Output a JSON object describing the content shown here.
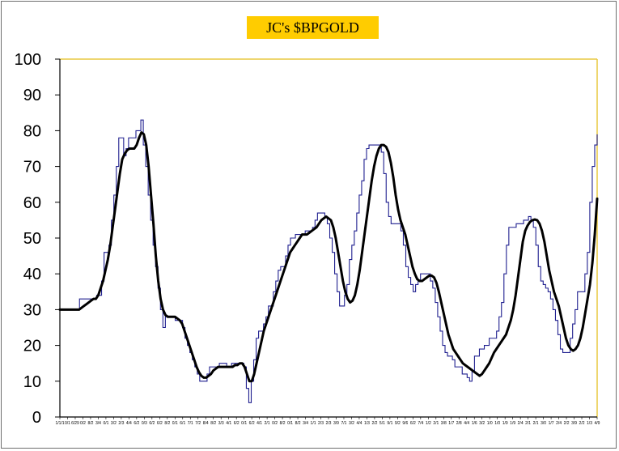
{
  "chart_data": {
    "type": "line",
    "title": "JC's $BPGOLD",
    "xlabel": "",
    "ylabel": "",
    "ylim": [
      0,
      100
    ],
    "yticks": [
      0,
      10,
      20,
      30,
      40,
      50,
      60,
      70,
      80,
      90,
      100
    ],
    "grid": false,
    "legend": "none",
    "colors": {
      "raw": "#1f1f8f",
      "smooth": "#000000",
      "plot_border": "#e8c840",
      "title_bg": "#ffcc00"
    },
    "series": [
      {
        "values": [
          30,
          30,
          30,
          30,
          30,
          30,
          30,
          30,
          33,
          33,
          33,
          33,
          33,
          33,
          33,
          34,
          34,
          38,
          46,
          46,
          48,
          55,
          62,
          70,
          78,
          78,
          73,
          75,
          78,
          78,
          78,
          80,
          80,
          83,
          76,
          70,
          62,
          55,
          48,
          42,
          36,
          30,
          25,
          28,
          28,
          28,
          28,
          27,
          27,
          27,
          25,
          22,
          20,
          18,
          16,
          14,
          12,
          10,
          10,
          10,
          12,
          14,
          14,
          14,
          14,
          15,
          15,
          15,
          14,
          14,
          15,
          15,
          15,
          15,
          15,
          14,
          8,
          4,
          10,
          16,
          22,
          24,
          24,
          26,
          28,
          31,
          31,
          35,
          38,
          41,
          42,
          42,
          45,
          48,
          50,
          50,
          51,
          51,
          51,
          51,
          52,
          52,
          52,
          53,
          55,
          57,
          57,
          57,
          56,
          54,
          50,
          46,
          40,
          35,
          31,
          31,
          34,
          37,
          44,
          48,
          52,
          57,
          62,
          66,
          72,
          75,
          76,
          76,
          76,
          76,
          76,
          74,
          68,
          60,
          56,
          54,
          54,
          54,
          54,
          52,
          48,
          42,
          39,
          37,
          35,
          37,
          38,
          40,
          40,
          40,
          40,
          38,
          36,
          32,
          28,
          24,
          20,
          18,
          17,
          17,
          16,
          14,
          14,
          14,
          12,
          12,
          11,
          10,
          13,
          17,
          17,
          19,
          19,
          20,
          20,
          22,
          22,
          22,
          24,
          28,
          32,
          40,
          48,
          53,
          53,
          53,
          54,
          54,
          54,
          55,
          55,
          56,
          55,
          53,
          48,
          42,
          38,
          37,
          36,
          35,
          33,
          30,
          27,
          23,
          19,
          18,
          18,
          18,
          22,
          26,
          30,
          35,
          35,
          35,
          40,
          46,
          60,
          70,
          76,
          79
        ]
      },
      {
        "values": [
          30,
          30,
          30,
          30,
          30,
          30,
          30,
          30,
          30,
          30.5,
          31,
          31.5,
          32,
          32.5,
          33,
          33,
          34,
          36,
          38,
          41,
          44,
          48,
          53,
          58,
          63,
          68,
          72,
          73.5,
          74.5,
          75,
          75,
          75,
          76,
          78,
          79.5,
          79,
          76,
          70,
          62,
          54,
          45,
          38,
          33,
          30,
          28.5,
          28,
          28,
          28,
          28,
          27.5,
          27,
          26,
          24,
          22,
          20,
          18,
          16,
          14,
          12.5,
          11.5,
          11,
          11,
          11.5,
          12,
          13,
          13.5,
          14,
          14,
          14,
          14,
          14,
          14,
          14,
          14.5,
          14.5,
          15,
          15,
          14,
          12,
          10,
          10,
          12,
          15,
          18,
          21,
          24,
          26,
          28,
          30,
          32,
          34,
          36,
          38,
          40,
          42,
          44,
          46,
          47,
          48,
          49,
          50,
          51,
          51,
          51,
          51.5,
          52,
          52.5,
          53,
          54,
          55,
          55.5,
          56,
          55.5,
          55,
          53,
          50,
          46,
          42,
          38,
          35,
          33,
          32,
          32.5,
          34,
          37,
          41,
          46,
          51,
          56,
          61,
          66,
          70,
          73,
          75,
          76,
          76,
          75.5,
          74,
          71,
          67,
          62,
          58,
          55,
          53,
          51,
          48,
          45,
          42,
          40,
          38.5,
          38,
          38,
          38.5,
          39,
          39.5,
          39.5,
          39,
          37.5,
          35,
          32,
          29,
          26,
          23,
          21,
          19,
          18,
          17,
          16,
          15,
          14.5,
          14,
          13.5,
          13,
          12.5,
          12,
          11.5,
          12,
          13,
          14,
          15,
          16.5,
          18,
          19,
          20,
          21,
          22,
          23,
          25,
          27,
          30,
          34,
          39,
          44,
          49,
          52,
          53.5,
          54.5,
          55,
          55.2,
          55,
          54,
          52,
          49,
          45,
          41,
          38,
          35,
          33,
          31,
          28,
          25,
          22,
          20,
          19,
          18.5,
          19,
          20,
          22,
          25,
          29,
          33,
          37,
          43,
          51,
          61
        ]
      }
    ],
    "x_tick_labels": [
      "1/1/1",
      "0/1",
      "6/29",
      "0/2",
      "8/2",
      "3/4",
      "0/1",
      "3/2",
      "2/3",
      "4/4",
      "6/2",
      "0/3",
      "6/2",
      "6/2",
      "8/2",
      "0/1",
      "6/1",
      "7/1",
      "7/2",
      "8/4",
      "8/2",
      "3/3",
      "4/1",
      "6/2",
      "0/1",
      "6/2",
      "4/1",
      "2/1",
      "0/2",
      "8/2",
      "0/1",
      "8/2",
      "3/4",
      "1/1",
      "2/3",
      "2/3",
      "3/9",
      "7/1",
      "3/2",
      "4/4",
      "1/3",
      "2/2",
      "5/1",
      "9/1",
      "9/2",
      "9/6",
      "6/2",
      "7/4",
      "1/2",
      "2/1",
      "3/8",
      "1/7",
      "2/8",
      "4/4",
      "1/6",
      "3/2",
      "1/0",
      "1/0",
      "1/9",
      "1/9",
      "2/4",
      "2/1",
      "2/1",
      "3/0",
      "1/7",
      "2/4",
      "2/2",
      "3/9",
      "2/2",
      "1/3",
      "4/9"
    ]
  }
}
